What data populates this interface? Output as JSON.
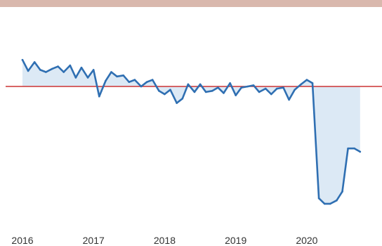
{
  "header": {
    "band_color": "#d9b8ad"
  },
  "chart_data": {
    "type": "area",
    "title": "",
    "xlabel": "",
    "ylabel": "",
    "x_ticks": [
      "2016",
      "2017",
      "2018",
      "2019",
      "2020"
    ],
    "xlim": [
      2016.0,
      2020.9
    ],
    "ylim": [
      -12,
      4
    ],
    "baseline": 0,
    "baseline_color": "#cc3333",
    "line_color": "#2f6fb2",
    "fill_color": "#dce9f5",
    "grid": false,
    "legend": "none",
    "series": [
      {
        "values": [
          [
            2016.0,
            2.4
          ],
          [
            2016.08,
            1.4
          ],
          [
            2016.17,
            2.2
          ],
          [
            2016.25,
            1.5
          ],
          [
            2016.33,
            1.3
          ],
          [
            2016.42,
            1.6
          ],
          [
            2016.5,
            1.8
          ],
          [
            2016.58,
            1.3
          ],
          [
            2016.67,
            1.9
          ],
          [
            2016.75,
            0.8
          ],
          [
            2016.83,
            1.7
          ],
          [
            2016.92,
            0.8
          ],
          [
            2017.0,
            1.5
          ],
          [
            2017.08,
            -0.9
          ],
          [
            2017.17,
            0.5
          ],
          [
            2017.25,
            1.3
          ],
          [
            2017.33,
            0.9
          ],
          [
            2017.42,
            1.0
          ],
          [
            2017.5,
            0.4
          ],
          [
            2017.58,
            0.6
          ],
          [
            2017.67,
            0.0
          ],
          [
            2017.75,
            0.4
          ],
          [
            2017.83,
            0.6
          ],
          [
            2017.92,
            -0.4
          ],
          [
            2018.0,
            -0.7
          ],
          [
            2018.08,
            -0.3
          ],
          [
            2018.17,
            -1.5
          ],
          [
            2018.25,
            -1.1
          ],
          [
            2018.33,
            0.2
          ],
          [
            2018.42,
            -0.5
          ],
          [
            2018.5,
            0.2
          ],
          [
            2018.58,
            -0.5
          ],
          [
            2018.67,
            -0.4
          ],
          [
            2018.75,
            -0.1
          ],
          [
            2018.83,
            -0.6
          ],
          [
            2018.92,
            0.3
          ],
          [
            2019.0,
            -0.8
          ],
          [
            2019.08,
            -0.1
          ],
          [
            2019.17,
            0.0
          ],
          [
            2019.25,
            0.1
          ],
          [
            2019.33,
            -0.5
          ],
          [
            2019.42,
            -0.2
          ],
          [
            2019.5,
            -0.7
          ],
          [
            2019.58,
            -0.2
          ],
          [
            2019.67,
            -0.1
          ],
          [
            2019.75,
            -1.2
          ],
          [
            2019.83,
            -0.3
          ],
          [
            2019.92,
            0.2
          ],
          [
            2020.0,
            0.6
          ],
          [
            2020.08,
            0.3
          ],
          [
            2020.17,
            -10.1
          ],
          [
            2020.25,
            -10.6
          ],
          [
            2020.33,
            -10.6
          ],
          [
            2020.42,
            -10.3
          ],
          [
            2020.5,
            -9.5
          ],
          [
            2020.58,
            -5.6
          ],
          [
            2020.67,
            -5.6
          ],
          [
            2020.75,
            -5.9
          ]
        ]
      }
    ]
  }
}
